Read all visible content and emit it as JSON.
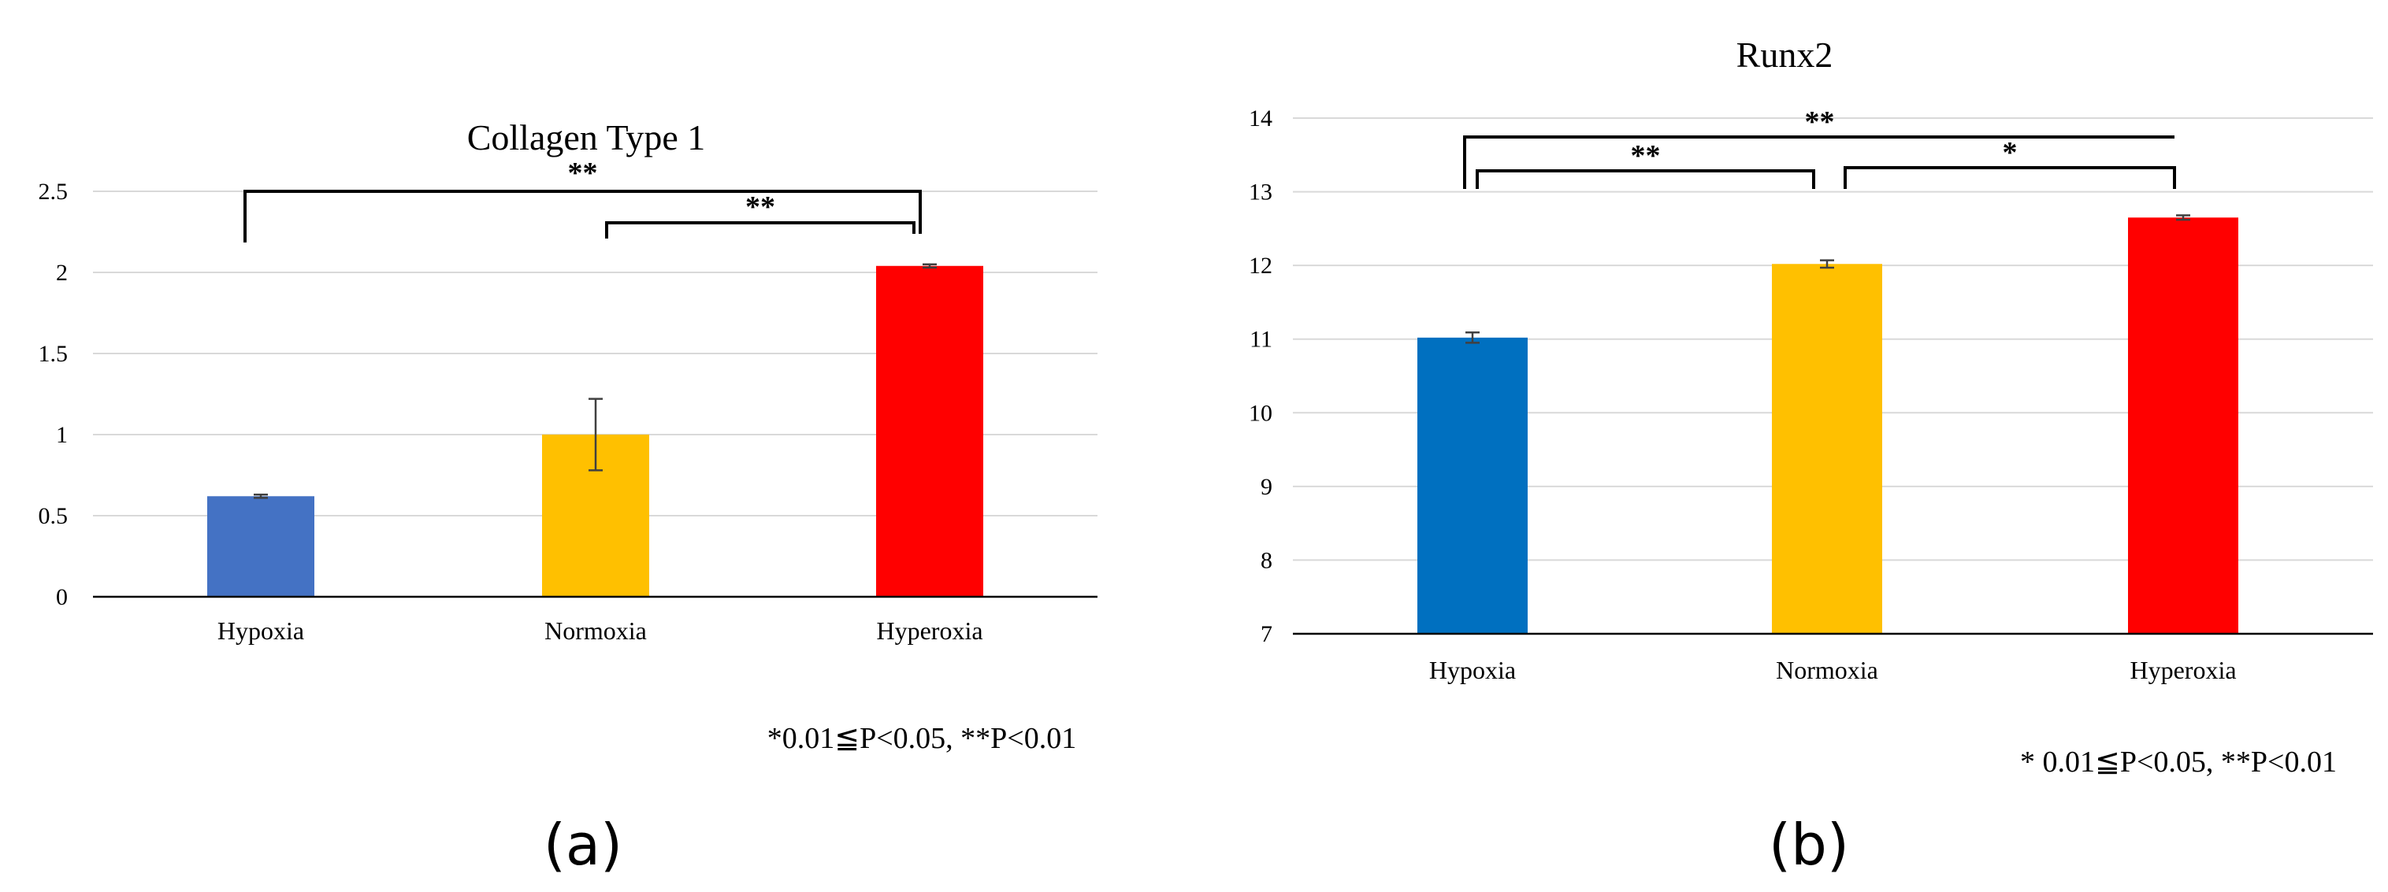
{
  "chart_data": [
    {
      "type": "bar",
      "title": "Collagen Type 1",
      "panel_label": "(a)",
      "categories": [
        "Hypoxia",
        "Normoxia",
        "Hyperoxia"
      ],
      "values": [
        0.62,
        1.0,
        2.04
      ],
      "errors": [
        0.01,
        0.22,
        0.01
      ],
      "colors": [
        "#4472c4",
        "#ffc000",
        "#ff0000"
      ],
      "ylim": [
        0,
        2.5
      ],
      "yticks": [
        0,
        0.5,
        1,
        1.5,
        2,
        2.5
      ],
      "ytick_labels": [
        "0",
        "0.5",
        "1",
        "1.5",
        "2",
        "2.5"
      ],
      "grid": true,
      "significance": [
        {
          "from": 0,
          "to": 2,
          "label": "**"
        },
        {
          "from": 1,
          "to": 2,
          "label": "**"
        }
      ],
      "footnote": "*0.01≦P<0.05, **P<0.01"
    },
    {
      "type": "bar",
      "title": "Runx2",
      "panel_label": "(b)",
      "categories": [
        "Hypoxia",
        "Normoxia",
        "Hyperoxia"
      ],
      "values": [
        11.02,
        12.02,
        12.65
      ],
      "errors": [
        0.07,
        0.05,
        0.03
      ],
      "colors": [
        "#0070c0",
        "#ffc000",
        "#ff0000"
      ],
      "ylim": [
        7,
        14
      ],
      "yticks": [
        7,
        8,
        9,
        10,
        11,
        12,
        13,
        14
      ],
      "ytick_labels": [
        "7",
        "8",
        "9",
        "10",
        "11",
        "12",
        "13",
        "14"
      ],
      "grid": true,
      "significance": [
        {
          "from": 0,
          "to": 2,
          "label": "**"
        },
        {
          "from": 0,
          "to": 1,
          "label": "**"
        },
        {
          "from": 1,
          "to": 2,
          "label": "*"
        }
      ],
      "footnote": "* 0.01≦P<0.05, **P<0.01"
    }
  ]
}
